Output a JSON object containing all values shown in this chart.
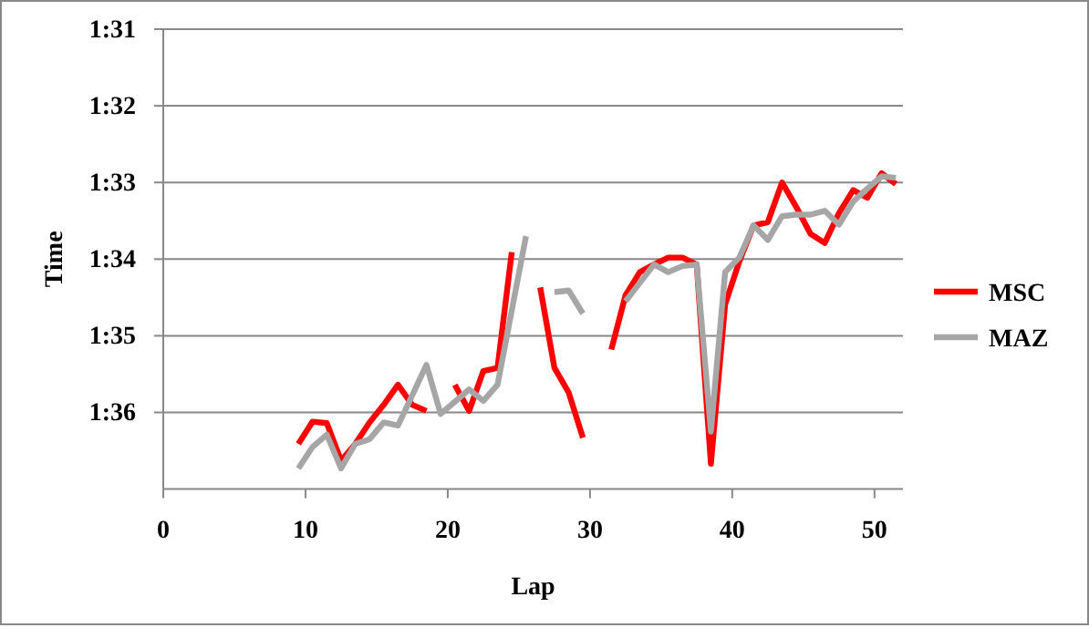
{
  "chart_data": {
    "type": "line",
    "xlabel": "Lap",
    "ylabel": "Time",
    "x": [
      9.5,
      10.5,
      11.5,
      12.5,
      13.5,
      14.5,
      15.5,
      16.5,
      17.5,
      18.5,
      19.5,
      20.5,
      21.5,
      22.5,
      23.5,
      24.5,
      25.5,
      26.5,
      27.5,
      28.5,
      29.5,
      30.5,
      31.5,
      32.5,
      33.5,
      34.5,
      35.5,
      36.5,
      37.5,
      38.5,
      39.5,
      40.5,
      41.5,
      42.5,
      43.5,
      44.5,
      45.5,
      46.5,
      47.5,
      48.5,
      49.5,
      50.5,
      51.5
    ],
    "series": [
      {
        "name": "MSC",
        "color": "#ff0000",
        "values": [
          96.41,
          96.12,
          96.14,
          96.63,
          96.41,
          96.13,
          95.9,
          95.64,
          95.9,
          95.98,
          null,
          95.64,
          95.98,
          95.46,
          95.42,
          93.91,
          null,
          94.37,
          95.42,
          95.74,
          96.33,
          null,
          95.18,
          94.47,
          94.17,
          94.07,
          93.98,
          93.98,
          94.07,
          96.67,
          94.59,
          94.03,
          93.56,
          93.52,
          93.0,
          93.32,
          93.67,
          93.79,
          93.4,
          93.1,
          93.2,
          92.88,
          93.02
        ]
      },
      {
        "name": "MAZ",
        "color": "#a6a6a6",
        "values": [
          96.73,
          96.45,
          96.29,
          96.73,
          96.41,
          96.35,
          96.13,
          96.17,
          95.78,
          95.38,
          96.02,
          95.86,
          95.7,
          95.85,
          95.64,
          94.67,
          93.7,
          null,
          94.43,
          94.41,
          94.71,
          null,
          null,
          94.55,
          94.31,
          94.07,
          94.17,
          94.09,
          94.07,
          96.25,
          94.17,
          93.98,
          93.56,
          93.75,
          93.44,
          93.42,
          93.42,
          93.37,
          93.55,
          93.25,
          93.08,
          92.92,
          92.94
        ]
      }
    ],
    "xlim": [
      0,
      52
    ],
    "xticks": [
      0,
      10,
      20,
      30,
      40,
      50
    ],
    "ylim": [
      97,
      91
    ],
    "yticks": [
      {
        "value": 91,
        "label": "1:31"
      },
      {
        "value": 92,
        "label": "1:32"
      },
      {
        "value": 93,
        "label": "1:33"
      },
      {
        "value": 94,
        "label": "1:34"
      },
      {
        "value": 95,
        "label": "1:35"
      },
      {
        "value": 96,
        "label": "1:36"
      }
    ],
    "grid": "y",
    "legend": "right",
    "marker": "none",
    "line_style": "solid"
  }
}
